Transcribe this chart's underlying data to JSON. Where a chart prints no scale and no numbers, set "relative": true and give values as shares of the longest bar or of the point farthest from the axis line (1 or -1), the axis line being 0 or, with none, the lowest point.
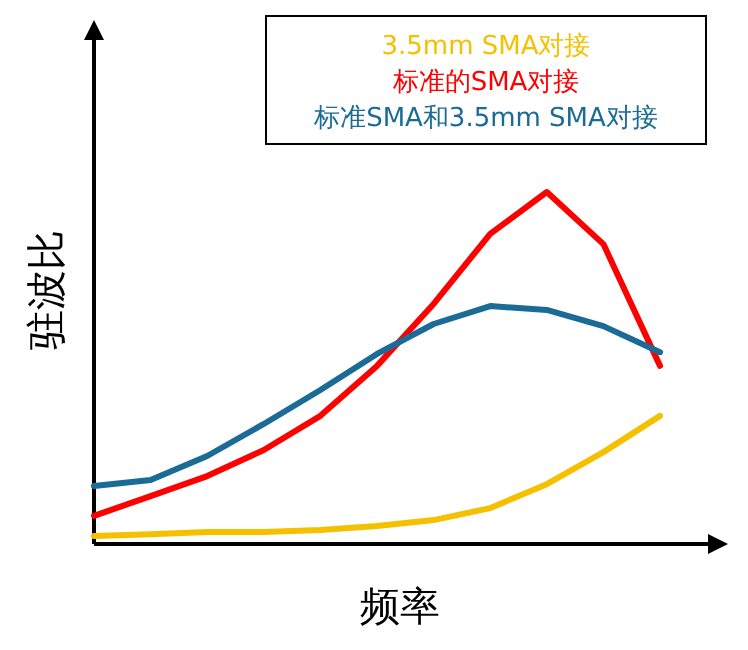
{
  "chart_data": {
    "type": "line",
    "relative": true,
    "xlabel": "频率",
    "ylabel": "驻波比",
    "legend": "top right",
    "marker": "none",
    "line_style": "solid",
    "grid": false,
    "categories": [
      null,
      null,
      null,
      null,
      null,
      null,
      null,
      null,
      null,
      null,
      null
    ],
    "series": [
      {
        "name": "3.5mm SMA对接",
        "color": "#f5c000",
        "values": [
          0.023,
          0.028,
          0.034,
          0.034,
          0.04,
          0.051,
          0.068,
          0.102,
          0.17,
          0.261,
          0.364
        ]
      },
      {
        "name": "标准的SMA对接",
        "color": "#ff0000",
        "values": [
          0.08,
          0.136,
          0.193,
          0.267,
          0.364,
          0.506,
          0.682,
          0.881,
          1,
          0.852,
          0.506
        ]
      },
      {
        "name": "标准SMA和3.5mm SMA对接",
        "color": "#1a6b96",
        "values": [
          0.165,
          0.182,
          0.25,
          0.341,
          0.4375,
          0.54,
          0.625,
          0.676,
          0.665,
          0.619,
          0.545
        ]
      }
    ]
  }
}
